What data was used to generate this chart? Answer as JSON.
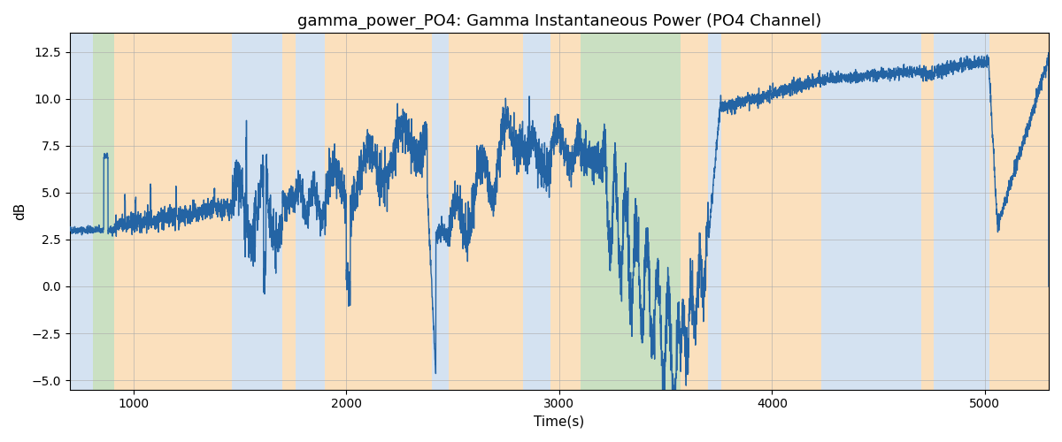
{
  "title": "gamma_power_PO4: Gamma Instantaneous Power (PO4 Channel)",
  "xlabel": "Time(s)",
  "ylabel": "dB",
  "xlim": [
    700,
    5300
  ],
  "ylim": [
    -5.5,
    13.5
  ],
  "line_color": "#2464a4",
  "line_width": 1.0,
  "bg_color": "#ffffff",
  "title_fontsize": 13,
  "label_fontsize": 11,
  "bands": [
    {
      "xmin": 700,
      "xmax": 810,
      "color": "#b8d0e8",
      "alpha": 0.6
    },
    {
      "xmin": 810,
      "xmax": 910,
      "color": "#a0c890",
      "alpha": 0.55
    },
    {
      "xmin": 910,
      "xmax": 1460,
      "color": "#f8c888",
      "alpha": 0.55
    },
    {
      "xmin": 1460,
      "xmax": 1700,
      "color": "#b8d0e8",
      "alpha": 0.6
    },
    {
      "xmin": 1700,
      "xmax": 1760,
      "color": "#f8c888",
      "alpha": 0.55
    },
    {
      "xmin": 1760,
      "xmax": 1900,
      "color": "#b8d0e8",
      "alpha": 0.6
    },
    {
      "xmin": 1900,
      "xmax": 2400,
      "color": "#f8c888",
      "alpha": 0.55
    },
    {
      "xmin": 2400,
      "xmax": 2480,
      "color": "#b8d0e8",
      "alpha": 0.6
    },
    {
      "xmin": 2480,
      "xmax": 2830,
      "color": "#f8c888",
      "alpha": 0.55
    },
    {
      "xmin": 2830,
      "xmax": 2960,
      "color": "#b8d0e8",
      "alpha": 0.6
    },
    {
      "xmin": 2960,
      "xmax": 3100,
      "color": "#f8c888",
      "alpha": 0.55
    },
    {
      "xmin": 3100,
      "xmax": 3570,
      "color": "#a0c890",
      "alpha": 0.55
    },
    {
      "xmin": 3570,
      "xmax": 3700,
      "color": "#f8c888",
      "alpha": 0.55
    },
    {
      "xmin": 3700,
      "xmax": 3760,
      "color": "#b8d0e8",
      "alpha": 0.6
    },
    {
      "xmin": 3760,
      "xmax": 4230,
      "color": "#f8c888",
      "alpha": 0.55
    },
    {
      "xmin": 4230,
      "xmax": 4700,
      "color": "#b8d0e8",
      "alpha": 0.6
    },
    {
      "xmin": 4700,
      "xmax": 4760,
      "color": "#f8c888",
      "alpha": 0.55
    },
    {
      "xmin": 4760,
      "xmax": 5020,
      "color": "#b8d0e8",
      "alpha": 0.6
    },
    {
      "xmin": 5020,
      "xmax": 5300,
      "color": "#f8c888",
      "alpha": 0.55
    }
  ],
  "yticks": [
    -5.0,
    -2.5,
    0.0,
    2.5,
    5.0,
    7.5,
    10.0,
    12.5
  ],
  "xticks": [
    1000,
    2000,
    3000,
    4000,
    5000
  ],
  "seed": 42
}
